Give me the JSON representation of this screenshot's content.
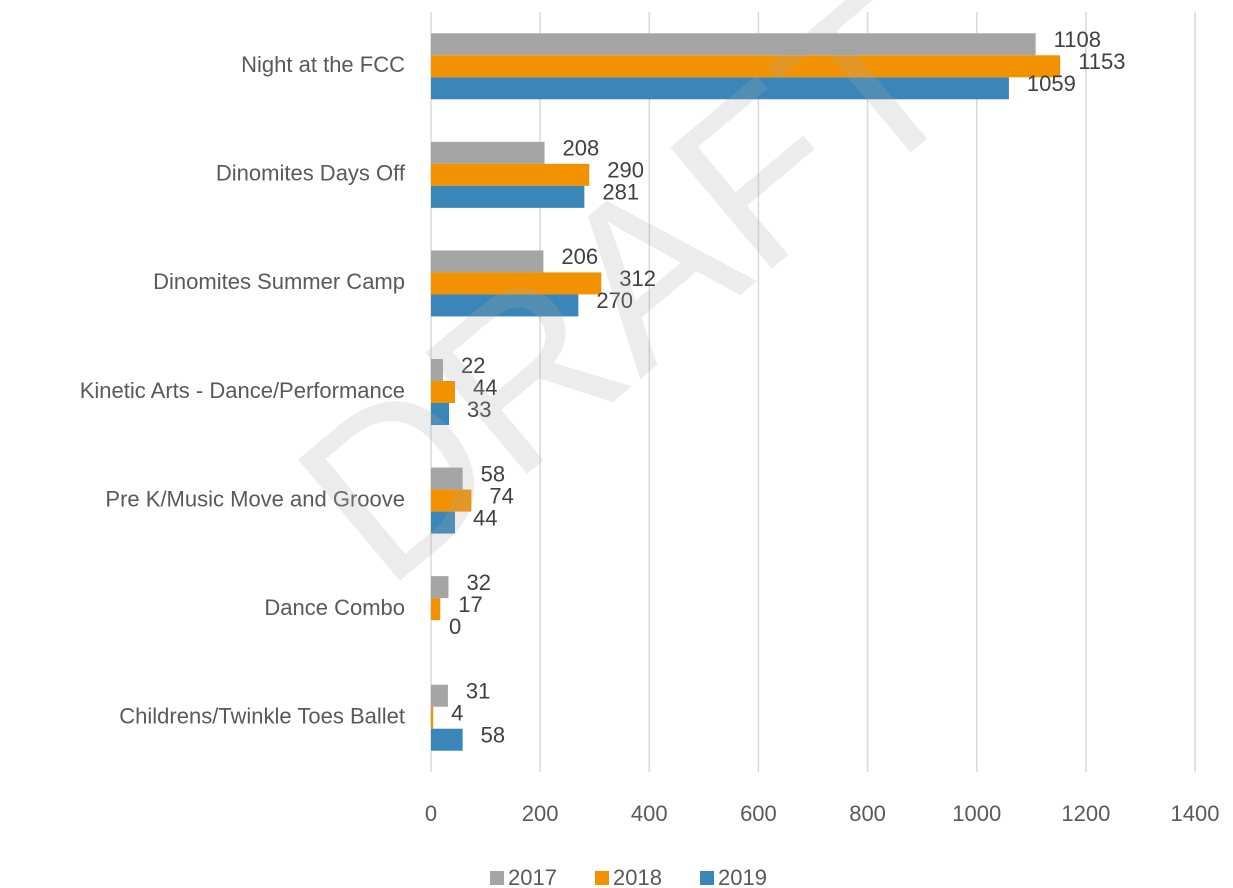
{
  "chart_data": {
    "type": "bar",
    "orientation": "horizontal",
    "categories": [
      "Night at the FCC",
      "Dinomites Days Off",
      "Dinomites Summer Camp",
      "Kinetic Arts - Dance/Performance",
      "Pre K/Music Move and Groove",
      "Dance Combo",
      "Childrens/Twinkle Toes Ballet"
    ],
    "series": [
      {
        "name": "2017",
        "color": "#a5a5a5",
        "values": [
          1108,
          208,
          206,
          22,
          58,
          32,
          31
        ]
      },
      {
        "name": "2018",
        "color": "#f39200",
        "values": [
          1153,
          290,
          312,
          44,
          74,
          17,
          4
        ]
      },
      {
        "name": "2019",
        "color": "#3a86b8",
        "values": [
          1059,
          281,
          270,
          33,
          44,
          0,
          58
        ]
      }
    ],
    "xlim": [
      0,
      1400
    ],
    "xticks": [
      0,
      200,
      400,
      600,
      800,
      1000,
      1200,
      1400
    ],
    "grid": true,
    "legend": "bottom",
    "watermark": "DRAFT"
  }
}
